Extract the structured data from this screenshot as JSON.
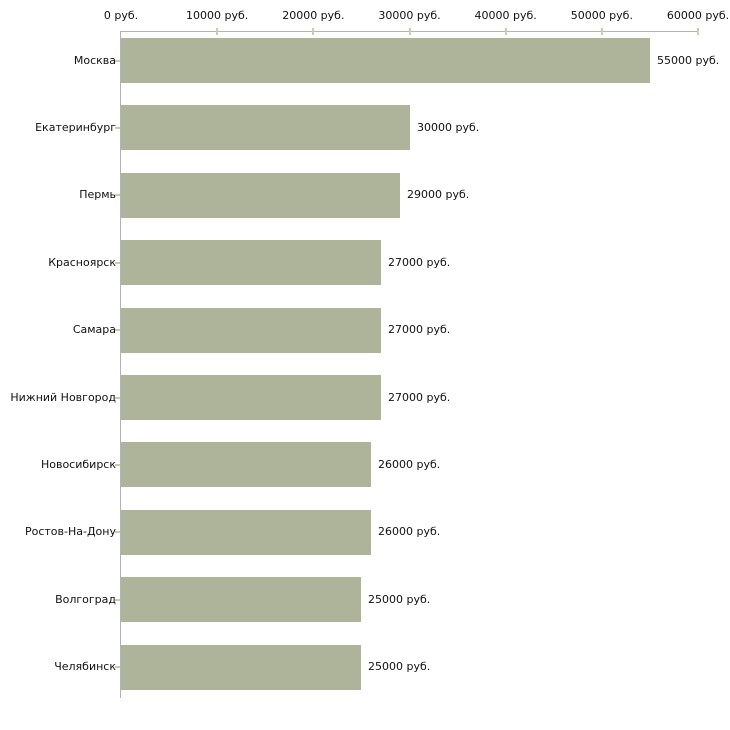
{
  "chart_data": {
    "type": "bar",
    "orientation": "horizontal",
    "title": "",
    "xlabel": "",
    "ylabel": "",
    "unit": "руб.",
    "categories": [
      "Москва",
      "Екатеринбург",
      "Пермь",
      "Красноярск",
      "Самара",
      "Нижний Новгород",
      "Новосибирск",
      "Ростов-На-Дону",
      "Волгоград",
      "Челябинск"
    ],
    "values": [
      55000,
      30000,
      29000,
      27000,
      27000,
      27000,
      26000,
      26000,
      25000,
      25000
    ],
    "bar_labels": [
      "55000 руб.",
      "30000 руб.",
      "29000 руб.",
      "27000 руб.",
      "27000 руб.",
      "27000 руб.",
      "26000 руб.",
      "26000 руб.",
      "25000 руб.",
      "25000 руб."
    ],
    "x_ticks": [
      0,
      10000,
      20000,
      30000,
      40000,
      50000,
      60000
    ],
    "x_tick_labels": [
      "0 руб.",
      "10000 руб.",
      "20000 руб.",
      "30000 руб.",
      "40000 руб.",
      "50000 руб.",
      "60000 руб."
    ],
    "xlim": [
      0,
      60000
    ],
    "grid": false,
    "legend": false,
    "axis_position": "top",
    "colors": {
      "bar": "#aeb499",
      "axis": "#b3b3b3",
      "tick": "#cdcda3",
      "text": "#111111",
      "background": "#ffffff"
    }
  }
}
